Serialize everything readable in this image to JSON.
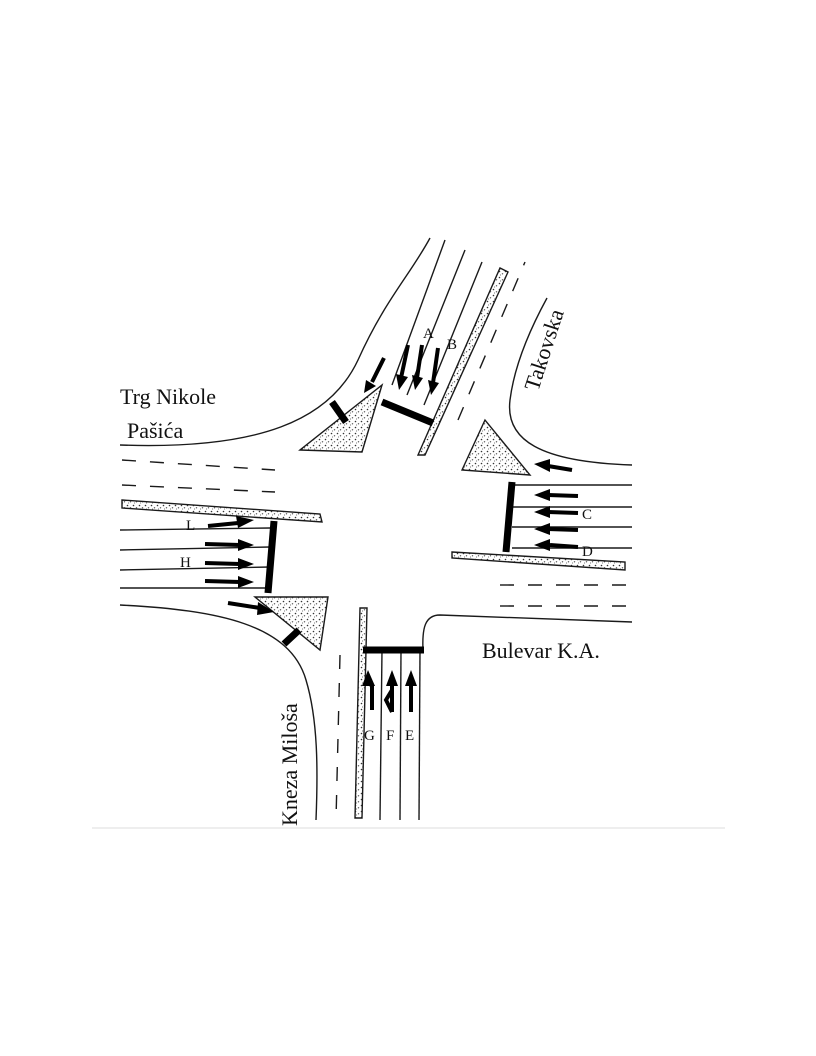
{
  "streets": {
    "trg_line1": "Trg Nikole",
    "trg_line2": "Pašića",
    "takovska": "Takovska",
    "bulevar": "Bulevar K.A.",
    "kneza": "Kneza Miloša"
  },
  "lanes": {
    "A": "A",
    "B": "B",
    "C": "C",
    "D": "D",
    "E": "E",
    "F": "F",
    "G": "G",
    "H": "H",
    "L": "L"
  }
}
